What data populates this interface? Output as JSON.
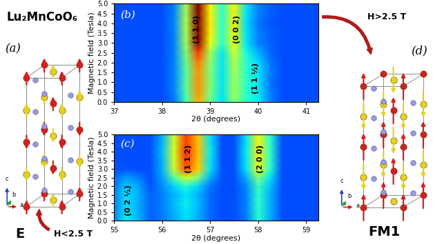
{
  "title": "Lu₂MnCoO₆",
  "chart_data": [
    {
      "type": "heatmap",
      "panel_label": "(b)",
      "color": "jet",
      "x_label": "2θ (degrees)",
      "y_label": "Magnetic field (Tesla)",
      "x": [
        37.0,
        37.25,
        37.5,
        37.75,
        38.0,
        38.25,
        38.5,
        38.75,
        39.0,
        39.25,
        39.5,
        39.75,
        40.0,
        40.25,
        40.5,
        40.75,
        41.0,
        41.25
      ],
      "y": [
        0.0,
        0.5,
        1.0,
        1.5,
        2.0,
        2.5,
        3.0,
        3.5,
        4.0,
        4.5,
        5.0
      ],
      "cells": [
        [
          2,
          2,
          2,
          2,
          2,
          2.4,
          4.3,
          7.2,
          4.8,
          3.4,
          5.2,
          4.1,
          3.6,
          2.5,
          2,
          2,
          2,
          2
        ],
        [
          2,
          2,
          2,
          2,
          2,
          2.5,
          4.5,
          7.5,
          5,
          3.5,
          5.5,
          4,
          3.5,
          2.5,
          2,
          2,
          2,
          2
        ],
        [
          2,
          2,
          2,
          2,
          2,
          2.5,
          4.6,
          7.6,
          5.1,
          3.5,
          5.4,
          4.1,
          3.5,
          2.4,
          2,
          2,
          2,
          2
        ],
        [
          2,
          2,
          2,
          2,
          2,
          2.5,
          4.5,
          7.5,
          5,
          3.5,
          5.5,
          4,
          3.5,
          2.5,
          2,
          2,
          2,
          2
        ],
        [
          2,
          2,
          2,
          2,
          2,
          2.5,
          4.7,
          7.8,
          5.2,
          3.5,
          5.6,
          4,
          3.4,
          2.4,
          2,
          2,
          2,
          2
        ],
        [
          2,
          2,
          2,
          2,
          2,
          2.5,
          5,
          8.5,
          5.5,
          3.5,
          6,
          3.8,
          3,
          2.3,
          2,
          2,
          2,
          2
        ],
        [
          2,
          2,
          2,
          2,
          2,
          2.5,
          5.4,
          9.8,
          6.4,
          4,
          6.4,
          3.5,
          2.5,
          2.2,
          2,
          2,
          2,
          2
        ],
        [
          2,
          2,
          2,
          2,
          2,
          2.5,
          5.5,
          10,
          6.5,
          4,
          6.5,
          3.5,
          2.5,
          2.2,
          2,
          2,
          2,
          2
        ],
        [
          2,
          2,
          2,
          2,
          2,
          2.6,
          5.6,
          10,
          6.6,
          4,
          6.6,
          3.4,
          2.4,
          2.1,
          2,
          2,
          2,
          2
        ],
        [
          2,
          2,
          2,
          2,
          2,
          2.5,
          5.5,
          10,
          6.5,
          4,
          6.5,
          3.5,
          2.5,
          2.2,
          2,
          2,
          2,
          2
        ],
        [
          2,
          2,
          2,
          2,
          2,
          2.5,
          5.5,
          9.9,
          6.5,
          4,
          6.5,
          3.5,
          2.5,
          2.2,
          2,
          2,
          2,
          2
        ]
      ],
      "color_range": [
        0,
        10
      ],
      "xlim": [
        37.0,
        41.25
      ],
      "ylim": [
        0.0,
        5.0
      ],
      "xticks": [
        37,
        38,
        39,
        40,
        41
      ],
      "yticks": [
        {
          "value": 0.0,
          "label": "0.0"
        },
        {
          "value": 0.5,
          "label": "0.5"
        },
        {
          "value": 1.0,
          "label": "1.0"
        },
        {
          "value": 1.5,
          "label": "1.5"
        },
        {
          "value": 2.0,
          "label": "2.0"
        },
        {
          "value": 2.5,
          "label": "2.5"
        },
        {
          "value": 3.0,
          "label": "3.0"
        },
        {
          "value": 3.5,
          "label": "3.5"
        },
        {
          "value": 4.0,
          "label": "4.0"
        },
        {
          "value": 4.5,
          "label": "4.5"
        },
        {
          "value": 5.0,
          "label": "5.0"
        }
      ],
      "annotations": [
        {
          "text": "(1 1 0)",
          "x": 38.72,
          "y": 3.7
        },
        {
          "text": "(0 0 2)",
          "x": 39.55,
          "y": 3.7
        },
        {
          "text": "(1 1 ½)",
          "x": 39.95,
          "y": 1.2
        }
      ]
    },
    {
      "type": "heatmap",
      "panel_label": "(c)",
      "color": "jet",
      "x_label": "2θ (degrees)",
      "y_label": "Magnetic field (Tesla)",
      "x": [
        55.0,
        55.25,
        55.5,
        55.75,
        56.0,
        56.25,
        56.5,
        56.75,
        57.0,
        57.25,
        57.5,
        57.75,
        58.0,
        58.25,
        58.5,
        58.75,
        59.0,
        59.25
      ],
      "y": [
        0.0,
        0.5,
        1.0,
        1.5,
        2.0,
        2.5,
        3.0,
        3.5,
        4.0,
        4.5,
        5.0
      ],
      "cells": [
        [
          2.6,
          3.6,
          3.1,
          2.2,
          2.4,
          2.9,
          3.4,
          2.9,
          2.3,
          2,
          2,
          2.4,
          3.9,
          2.9,
          2,
          2,
          2,
          2
        ],
        [
          2.5,
          3.5,
          3,
          2.2,
          2.5,
          3,
          3.5,
          3,
          2.3,
          2,
          2,
          2.5,
          4,
          3,
          2,
          2,
          2,
          2
        ],
        [
          2.5,
          3.4,
          3,
          2.2,
          2.5,
          3.1,
          3.6,
          3.1,
          2.3,
          2,
          2,
          2.5,
          4.1,
          3,
          2,
          2,
          2,
          2
        ],
        [
          2.5,
          3.5,
          3,
          2.2,
          2.5,
          3,
          3.5,
          3,
          2.3,
          2,
          2,
          2.5,
          4,
          3,
          2,
          2,
          2,
          2
        ],
        [
          2.4,
          3.2,
          2.9,
          2.1,
          2.6,
          3.3,
          3.9,
          3.3,
          2.4,
          2,
          2,
          2.6,
          4.2,
          3.1,
          2,
          2,
          2,
          2
        ],
        [
          2.3,
          2.8,
          2.5,
          2,
          2.8,
          4.5,
          6,
          5,
          3,
          2,
          2,
          3,
          5,
          3.5,
          2,
          2,
          2,
          2
        ],
        [
          2,
          2.1,
          2,
          2,
          3,
          5.9,
          8.3,
          6.9,
          3.5,
          2,
          2,
          3.5,
          6.4,
          4,
          2,
          2,
          2,
          2
        ],
        [
          2,
          2,
          2,
          2,
          3,
          6,
          8.5,
          7,
          3.5,
          2,
          2,
          3.5,
          6.5,
          4,
          2,
          2,
          2,
          2
        ],
        [
          2,
          2,
          2,
          2,
          3.1,
          6.1,
          8.7,
          7.1,
          3.6,
          2,
          2,
          3.6,
          6.6,
          4.1,
          2,
          2,
          2,
          2
        ],
        [
          2,
          2,
          2,
          2,
          3,
          6,
          8.5,
          7,
          3.5,
          2,
          2,
          3.5,
          6.5,
          4,
          2,
          2,
          2,
          2
        ],
        [
          2,
          2,
          2,
          2,
          3,
          6,
          8.4,
          7,
          3.5,
          2,
          2,
          3.5,
          6.5,
          4,
          2,
          2,
          2,
          2
        ]
      ],
      "color_range": [
        0,
        10
      ],
      "xlim": [
        55.0,
        59.25
      ],
      "ylim": [
        0.0,
        5.0
      ],
      "xticks": [
        55,
        56,
        57,
        58,
        59
      ],
      "yticks": [
        {
          "value": 0.0,
          "label": "0.0"
        },
        {
          "value": 0.5,
          "label": "0.5"
        },
        {
          "value": 1.0,
          "label": "1.0"
        },
        {
          "value": 1.5,
          "label": "1.5"
        },
        {
          "value": 2.0,
          "label": "2.0"
        },
        {
          "value": 2.5,
          "label": "2.5"
        },
        {
          "value": 3.0,
          "label": "3.0"
        },
        {
          "value": 3.5,
          "label": "3.5"
        },
        {
          "value": 4.0,
          "label": "4.0"
        },
        {
          "value": 4.5,
          "label": "4.5"
        },
        {
          "value": 5.0,
          "label": "5.0"
        }
      ],
      "annotations": [
        {
          "text": "(1 1 2)",
          "x": 56.55,
          "y": 3.6
        },
        {
          "text": "(2 0 0)",
          "x": 58.05,
          "y": 3.6
        },
        {
          "text": "(0 2 ½)",
          "x": 55.3,
          "y": 1.2
        }
      ]
    }
  ],
  "structures": [
    {
      "panel_label": "(a)",
      "name": "E"
    },
    {
      "panel_label": "(d)",
      "name": "FM1"
    }
  ],
  "crystal_axes": [
    "a",
    "b",
    "c"
  ],
  "transitions": [
    {
      "text": "H>2.5 T"
    },
    {
      "text": "H<2.5 T"
    }
  ]
}
